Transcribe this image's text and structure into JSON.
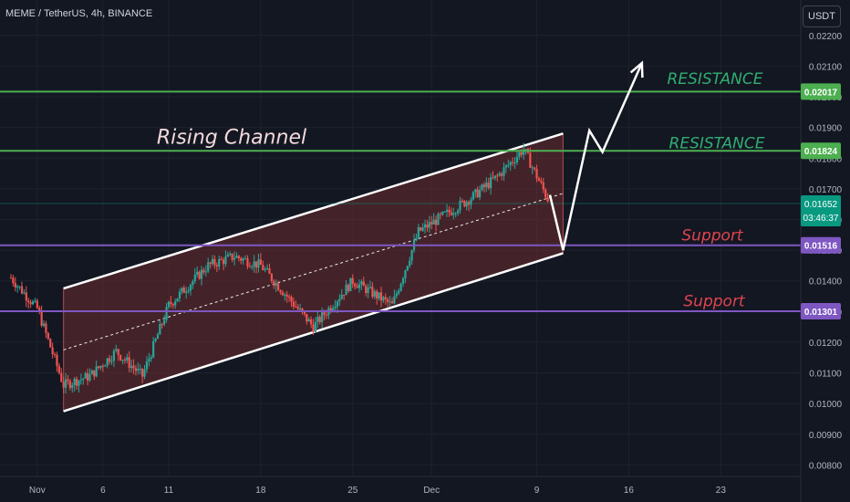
{
  "header": {
    "symbol_title": "MEME / TetherUS, 4h, BINANCE",
    "currency_button": "USDT"
  },
  "colors": {
    "background": "#131722",
    "grid": "#1e222d",
    "bull": "#26a69a",
    "bear": "#ef5350",
    "channel_fill": "#6b2d30",
    "resistance": "#4caf50",
    "support": "#7e57c2",
    "support_text": "#e0444f",
    "price_tag": "#089981"
  },
  "chart_data": {
    "type": "candlestick",
    "ylim": [
      0.0078,
      0.0225
    ],
    "y_tick_labels": [
      "0.00800",
      "0.00900",
      "0.01000",
      "0.01100",
      "0.01200",
      "0.01300",
      "0.01400",
      "0.01500",
      "0.01600",
      "0.01700",
      "0.01800",
      "0.01900",
      "0.02000",
      "0.02100",
      "0.02200"
    ],
    "x_tick_labels": [
      "Nov",
      "6",
      "11",
      "18",
      "25",
      "Dec",
      "9",
      "16",
      "23"
    ],
    "x_range": [
      "2023-10-30",
      "2023-12-27"
    ],
    "x_ticks": [
      {
        "label": "Nov",
        "date": "2023-11-01"
      },
      {
        "label": "6",
        "date": "2023-11-06"
      },
      {
        "label": "11",
        "date": "2023-11-11"
      },
      {
        "label": "18",
        "date": "2023-11-18"
      },
      {
        "label": "25",
        "date": "2023-11-25"
      },
      {
        "label": "Dec",
        "date": "2023-12-01"
      },
      {
        "label": "9",
        "date": "2023-12-09"
      },
      {
        "label": "16",
        "date": "2023-12-16"
      },
      {
        "label": "23",
        "date": "2023-12-23"
      }
    ],
    "approx_close_path": [
      {
        "date": "2023-10-30",
        "close": 0.0141
      },
      {
        "date": "2023-11-01",
        "close": 0.0131
      },
      {
        "date": "2023-11-03",
        "close": 0.0106
      },
      {
        "date": "2023-11-05",
        "close": 0.0109
      },
      {
        "date": "2023-11-07",
        "close": 0.0117
      },
      {
        "date": "2023-11-09",
        "close": 0.0109
      },
      {
        "date": "2023-11-11",
        "close": 0.0132
      },
      {
        "date": "2023-11-14",
        "close": 0.0145
      },
      {
        "date": "2023-11-16",
        "close": 0.0148
      },
      {
        "date": "2023-11-18",
        "close": 0.0145
      },
      {
        "date": "2023-11-22",
        "close": 0.0125
      },
      {
        "date": "2023-11-25",
        "close": 0.014
      },
      {
        "date": "2023-11-28",
        "close": 0.0132
      },
      {
        "date": "2023-11-30",
        "close": 0.0156
      },
      {
        "date": "2023-12-04",
        "close": 0.0167
      },
      {
        "date": "2023-12-06",
        "close": 0.0174
      },
      {
        "date": "2023-12-08",
        "close": 0.0183
      },
      {
        "date": "2023-12-10",
        "close": 0.01652
      }
    ],
    "last_price": "0.01652",
    "countdown": "03:46:37",
    "levels": [
      {
        "kind": "resistance",
        "value": 0.02017,
        "label": "0.02017",
        "text": "RESISTANCE"
      },
      {
        "kind": "resistance",
        "value": 0.01824,
        "label": "0.01824",
        "text": "RESISTANCE"
      },
      {
        "kind": "support",
        "value": 0.01516,
        "label": "0.01516",
        "text": "Support"
      },
      {
        "kind": "support",
        "value": 0.01301,
        "label": "0.01301",
        "text": "Support"
      }
    ],
    "channel": {
      "title": "Rising Channel",
      "start_date": "2023-11-03",
      "end_date": "2023-12-11",
      "upper": [
        0.01375,
        0.0188
      ],
      "lower": [
        0.00975,
        0.0149
      ]
    },
    "projection_path": [
      {
        "date": "2023-12-10",
        "value": 0.0168
      },
      {
        "date": "2023-12-11",
        "value": 0.015
      },
      {
        "date": "2023-12-13",
        "value": 0.0189
      },
      {
        "date": "2023-12-14",
        "value": 0.0182
      },
      {
        "date": "2023-12-17",
        "value": 0.0211
      }
    ]
  }
}
